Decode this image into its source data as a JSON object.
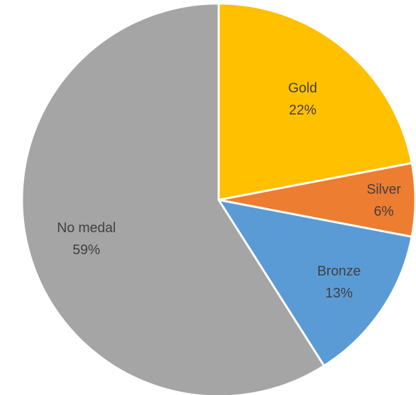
{
  "chart_data": {
    "type": "pie",
    "title": "",
    "start_angle_deg": 0,
    "direction": "clockwise",
    "legend": "none",
    "data_labels": "category-and-percent",
    "slices": [
      {
        "label": "Gold",
        "value": 22,
        "display": "22%",
        "color": "#FFC000"
      },
      {
        "label": "Silver",
        "value": 6,
        "display": "6%",
        "color": "#ED7D31"
      },
      {
        "label": "Bronze",
        "value": 13,
        "display": "13%",
        "color": "#5B9BD5"
      },
      {
        "label": "No medal",
        "value": 59,
        "display": "59%",
        "color": "#A5A5A5"
      }
    ]
  }
}
